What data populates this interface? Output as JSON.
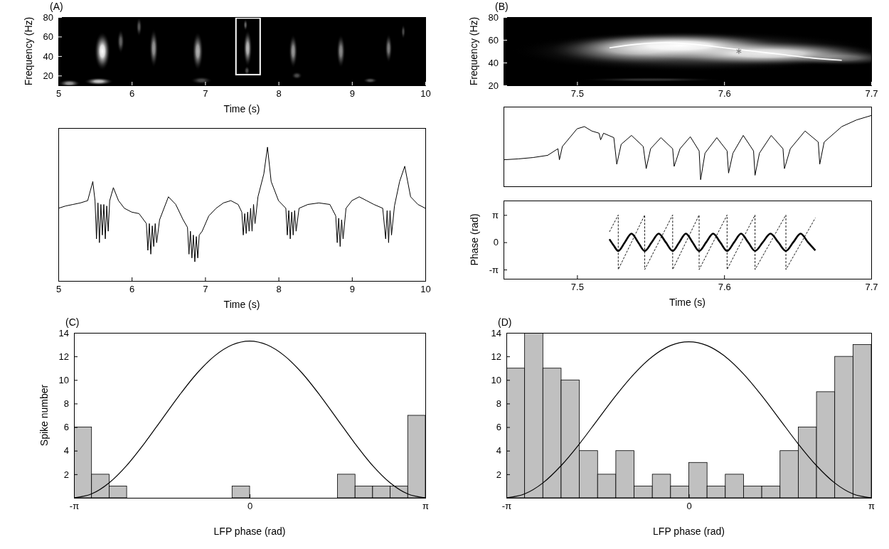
{
  "chart_data": [
    {
      "type": "spectrogram",
      "panel": "(A)",
      "x_label": "Time (s)",
      "y_label": "Frequency (Hz)",
      "xlim": [
        5,
        10
      ],
      "xticks": [
        5,
        6,
        7,
        8,
        9,
        10
      ],
      "ylim": [
        10,
        80
      ],
      "yticks": [
        20,
        40,
        60,
        80
      ],
      "bursts": {
        "time": [
          5.15,
          5.55,
          5.6,
          5.85,
          6.1,
          6.3,
          6.9,
          6.95,
          7.55,
          7.57,
          7.58,
          8.2,
          8.25,
          8.85,
          9.25,
          9.5,
          9.7
        ],
        "frequency": [
          12,
          14,
          45,
          55,
          70,
          48,
          45,
          15,
          72,
          25,
          48,
          45,
          20,
          45,
          15,
          48,
          65
        ],
        "duration": [
          0.3,
          0.4,
          0.22,
          0.1,
          0.08,
          0.12,
          0.15,
          0.3,
          0.06,
          0.08,
          0.12,
          0.12,
          0.15,
          0.12,
          0.2,
          0.1,
          0.06
        ],
        "bandwidth": [
          8,
          8,
          40,
          25,
          20,
          40,
          40,
          8,
          12,
          10,
          38,
          35,
          8,
          35,
          6,
          30,
          15
        ],
        "power": [
          0.6,
          0.8,
          1,
          0.4,
          0.35,
          0.6,
          0.7,
          0.3,
          0.4,
          0.3,
          0.75,
          0.6,
          0.3,
          0.55,
          0.35,
          0.5,
          0.3
        ]
      },
      "highlight": {
        "x": [
          7.42,
          7.75
        ],
        "y": [
          21,
          79
        ],
        "color": "#ffffff"
      }
    },
    {
      "type": "line",
      "x_label": "Time (s)",
      "xlim": [
        5,
        10
      ],
      "xticks": [
        5,
        6,
        7,
        8,
        9,
        10
      ],
      "ylim": [
        -1,
        1
      ],
      "tick_labels": "x",
      "x": [
        5.0,
        5.1,
        5.2,
        5.3,
        5.4,
        5.47,
        5.5,
        5.52,
        5.54,
        5.56,
        5.58,
        5.6,
        5.62,
        5.64,
        5.66,
        5.68,
        5.7,
        5.75,
        5.82,
        5.9,
        6.0,
        6.1,
        6.2,
        6.22,
        6.24,
        6.26,
        6.28,
        6.3,
        6.32,
        6.34,
        6.38,
        6.5,
        6.6,
        6.7,
        6.76,
        6.78,
        6.8,
        6.82,
        6.84,
        6.86,
        6.88,
        6.9,
        6.92,
        6.96,
        7.05,
        7.15,
        7.25,
        7.35,
        7.45,
        7.5,
        7.52,
        7.54,
        7.56,
        7.58,
        7.6,
        7.62,
        7.64,
        7.66,
        7.68,
        7.72,
        7.8,
        7.85,
        7.9,
        8.0,
        8.1,
        8.12,
        8.14,
        8.16,
        8.18,
        8.2,
        8.22,
        8.24,
        8.28,
        8.4,
        8.55,
        8.7,
        8.78,
        8.8,
        8.82,
        8.84,
        8.86,
        8.88,
        8.92,
        9.0,
        9.1,
        9.2,
        9.3,
        9.42,
        9.46,
        9.48,
        9.5,
        9.52,
        9.54,
        9.58,
        9.65,
        9.72,
        9.8,
        9.9,
        10.0
      ],
      "series": [
        {
          "color": "#000000",
          "values": [
            -0.05,
            -0.02,
            0,
            0.02,
            0.05,
            0.3,
            0.05,
            -0.45,
            0.02,
            -0.5,
            0,
            -0.4,
            0,
            -0.45,
            -0.02,
            -0.35,
            0.05,
            0.22,
            0.05,
            -0.05,
            -0.1,
            -0.12,
            -0.25,
            -0.6,
            -0.25,
            -0.65,
            -0.28,
            -0.55,
            -0.25,
            -0.5,
            -0.2,
            0.1,
            0,
            -0.2,
            -0.3,
            -0.65,
            -0.35,
            -0.7,
            -0.4,
            -0.75,
            -0.42,
            -0.7,
            -0.4,
            -0.35,
            -0.15,
            -0.05,
            0.02,
            0.05,
            0,
            -0.1,
            -0.4,
            -0.12,
            -0.38,
            -0.1,
            -0.35,
            -0.05,
            -0.35,
            0,
            -0.25,
            0.1,
            0.4,
            0.75,
            0.3,
            0.05,
            -0.05,
            -0.4,
            -0.08,
            -0.45,
            -0.1,
            -0.4,
            -0.08,
            -0.35,
            -0.05,
            0,
            0.02,
            0,
            -0.15,
            -0.5,
            -0.18,
            -0.55,
            -0.2,
            -0.45,
            -0.05,
            0.05,
            0.1,
            0.05,
            0,
            -0.05,
            -0.45,
            -0.08,
            -0.5,
            -0.08,
            -0.4,
            -0.02,
            0.3,
            0.5,
            0.1,
            0,
            -0.05
          ]
        }
      ]
    },
    {
      "type": "spectrogram",
      "panel": "(B)",
      "y_label": "Frequency (Hz)",
      "xlim": [
        7.45,
        7.7
      ],
      "xticks": [
        7.5,
        7.6,
        7.7
      ],
      "ylim": [
        20,
        80
      ],
      "yticks": [
        20,
        40,
        60,
        80
      ],
      "bursts": {
        "time": [
          7.58,
          7.54,
          7.57,
          7.63,
          7.68,
          7.55
        ],
        "frequency": [
          50,
          52,
          55,
          48,
          44,
          25
        ],
        "duration": [
          0.25,
          0.12,
          0.14,
          0.16,
          0.08,
          0.1
        ],
        "bandwidth": [
          36,
          28,
          24,
          22,
          14,
          4
        ],
        "power": [
          0.45,
          0.6,
          1,
          0.9,
          0.4,
          0.2
        ]
      },
      "ridge": {
        "x": [
          7.522,
          7.54,
          7.56,
          7.58,
          7.6,
          7.62,
          7.64,
          7.66,
          7.68
        ],
        "values": [
          53,
          56,
          57.5,
          56,
          53,
          50,
          47,
          44,
          42
        ],
        "color": "#ffffff"
      },
      "peak": {
        "x": 7.61,
        "y": 50,
        "marker": "asterisk",
        "color": "#808080"
      }
    },
    {
      "type": "line",
      "xlim": [
        7.45,
        7.7
      ],
      "ylim": [
        -1,
        0.8
      ],
      "tick_labels": false,
      "x": [
        7.45,
        7.46,
        7.47,
        7.48,
        7.487,
        7.488,
        7.49,
        7.5,
        7.505,
        7.51,
        7.515,
        7.516,
        7.518,
        7.525,
        7.527,
        7.53,
        7.537,
        7.545,
        7.547,
        7.55,
        7.557,
        7.565,
        7.566,
        7.57,
        7.577,
        7.583,
        7.584,
        7.587,
        7.595,
        7.602,
        7.603,
        7.606,
        7.613,
        7.62,
        7.621,
        7.624,
        7.632,
        7.64,
        7.641,
        7.645,
        7.655,
        7.664,
        7.665,
        7.668,
        7.68,
        7.69,
        7.7
      ],
      "series": [
        {
          "color": "#000000",
          "values": [
            -0.4,
            -0.38,
            -0.35,
            -0.3,
            -0.15,
            -0.4,
            -0.1,
            0.3,
            0.35,
            0.25,
            0.2,
            0.05,
            0.2,
            0.1,
            -0.5,
            -0.05,
            0.15,
            -0.1,
            -0.6,
            -0.15,
            0.1,
            -0.15,
            -0.55,
            -0.15,
            0.12,
            -0.2,
            -0.85,
            -0.25,
            0.1,
            -0.2,
            -0.7,
            -0.25,
            0.15,
            -0.2,
            -0.75,
            -0.25,
            0.15,
            -0.15,
            -0.6,
            -0.15,
            0.25,
            0,
            -0.5,
            0,
            0.35,
            0.5,
            0.6
          ]
        }
      ]
    },
    {
      "type": "line",
      "x_label": "Time (s)",
      "y_label": "Phase (rad)",
      "xlim": [
        7.45,
        7.7
      ],
      "xticks": [
        7.5,
        7.6,
        7.7
      ],
      "ylim": [
        -4.2,
        4.8
      ],
      "yticks": [
        {
          "value": 3.1416,
          "label": "π"
        },
        0,
        {
          "value": -3.1416,
          "label": "-π"
        }
      ],
      "series": [
        {
          "color": "#000000",
          "line_style": "dashed",
          "x": [
            7.522,
            7.528,
            7.528,
            7.546,
            7.546,
            7.565,
            7.565,
            7.583,
            7.583,
            7.602,
            7.602,
            7.621,
            7.621,
            7.642,
            7.642,
            7.662
          ],
          "values": [
            1.2,
            3.1416,
            -3.1416,
            3.1416,
            -3.1416,
            3.1416,
            -3.1416,
            3.1416,
            -3.1416,
            3.1416,
            -3.1416,
            3.1416,
            -3.1416,
            3.1416,
            -3.1416,
            2.8
          ]
        },
        {
          "color": "#000000",
          "line_style": "thick",
          "x": [
            7.522,
            7.525,
            7.528,
            7.5325,
            7.537,
            7.5415,
            7.546,
            7.5508,
            7.5555,
            7.5603,
            7.565,
            7.5695,
            7.574,
            7.5785,
            7.583,
            7.5878,
            7.5925,
            7.5973,
            7.602,
            7.6068,
            7.6115,
            7.6163,
            7.621,
            7.6263,
            7.6315,
            7.6368,
            7.642,
            7.647,
            7.652,
            7.657,
            7.662
          ],
          "values": [
            0.35,
            -0.4,
            -1,
            0,
            1,
            0,
            -1,
            0,
            1,
            0,
            -1,
            0,
            1,
            0,
            -1,
            0,
            1,
            0,
            -1,
            0,
            1,
            0,
            -1,
            0,
            1,
            0,
            -1,
            0,
            1,
            0,
            -0.94
          ]
        }
      ]
    },
    {
      "type": "histogram",
      "panel": "(C)",
      "x_label": "LFP phase (rad)",
      "y_label": "Spike number",
      "color": "#c0c0c0",
      "xlim": [
        -3.1416,
        3.1416
      ],
      "xticks": [
        {
          "value": -3.1416,
          "label": "-π"
        },
        0,
        {
          "value": 3.1416,
          "label": "π"
        }
      ],
      "ylim": [
        0,
        14
      ],
      "yticks": [
        2,
        4,
        6,
        8,
        10,
        12,
        14
      ],
      "bins": [
        -3.1416,
        -2.8274,
        -2.5133,
        -2.1991,
        -1.885,
        -1.5708,
        -1.2566,
        -0.9425,
        -0.6283,
        -0.3142,
        0,
        0.3142,
        0.6283,
        0.9425,
        1.2566,
        1.5708,
        1.885,
        2.1991,
        2.5133,
        2.8274,
        3.1416
      ],
      "counts": [
        6,
        2,
        1,
        0,
        0,
        0,
        0,
        0,
        0,
        1,
        0,
        0,
        0,
        0,
        0,
        2,
        1,
        1,
        1,
        7
      ],
      "curve": {
        "color": "#000000",
        "x": [
          -3.1416,
          -2.8274,
          -2.5133,
          -2.1991,
          -1.885,
          -1.5708,
          -1.2566,
          -0.9425,
          -0.6283,
          -0.3142,
          0,
          0.3142,
          0.6283,
          0.9425,
          1.2566,
          1.5708,
          1.885,
          2.1991,
          2.5133,
          2.8274,
          3.1416
        ],
        "values": [
          0,
          0.33,
          1.27,
          2.74,
          4.6,
          6.65,
          8.7,
          10.56,
          12.03,
          12.97,
          13.3,
          12.97,
          12.03,
          10.56,
          8.7,
          6.65,
          4.6,
          2.74,
          1.27,
          0.33,
          0
        ]
      }
    },
    {
      "type": "histogram",
      "panel": "(D)",
      "x_label": "LFP phase (rad)",
      "color": "#c0c0c0",
      "xlim": [
        -3.1416,
        3.1416
      ],
      "xticks": [
        {
          "value": -3.1416,
          "label": "-π"
        },
        0,
        {
          "value": 3.1416,
          "label": "π"
        }
      ],
      "ylim": [
        0,
        14
      ],
      "yticks": [
        2,
        4,
        6,
        8,
        10,
        12,
        14
      ],
      "bins": [
        -3.1416,
        -2.8274,
        -2.5133,
        -2.1991,
        -1.885,
        -1.5708,
        -1.2566,
        -0.9425,
        -0.6283,
        -0.3142,
        0,
        0.3142,
        0.6283,
        0.9425,
        1.2566,
        1.5708,
        1.885,
        2.1991,
        2.5133,
        2.8274,
        3.1416
      ],
      "counts": [
        11,
        14,
        11,
        10,
        4,
        2,
        4,
        1,
        2,
        1,
        3,
        1,
        2,
        1,
        1,
        4,
        6,
        9,
        12,
        13
      ],
      "curve": {
        "color": "#000000",
        "x": [
          -3.1416,
          -2.8274,
          -2.5133,
          -2.1991,
          -1.885,
          -1.5708,
          -1.2566,
          -0.9425,
          -0.6283,
          -0.3142,
          0,
          0.3142,
          0.6283,
          0.9425,
          1.2566,
          1.5708,
          1.885,
          2.1991,
          2.5133,
          2.8274,
          3.1416
        ],
        "values": [
          0,
          0.33,
          1.26,
          2.73,
          4.57,
          6.62,
          8.67,
          10.51,
          11.98,
          12.92,
          13.24,
          12.92,
          11.98,
          10.51,
          8.67,
          6.62,
          4.57,
          2.73,
          1.26,
          0.33,
          0
        ]
      }
    }
  ]
}
